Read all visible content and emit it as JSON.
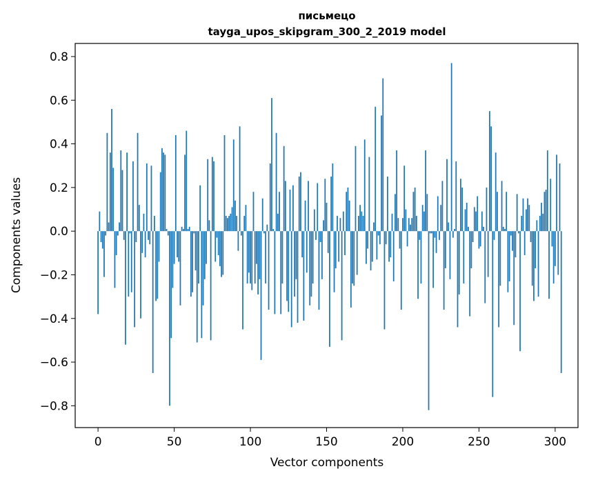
{
  "chart_data": {
    "type": "bar",
    "title": "письмецо",
    "subtitle": "tayga_upos_skipgram_300_2_2019 model",
    "xlabel": "Vector components",
    "ylabel": "Components values",
    "xlim": [
      -15,
      315
    ],
    "ylim": [
      -0.9,
      0.86
    ],
    "x_ticks": [
      0,
      50,
      100,
      150,
      200,
      250,
      300
    ],
    "x_tick_labels": [
      "0",
      "50",
      "100",
      "150",
      "200",
      "250",
      "300"
    ],
    "y_ticks": [
      -0.8,
      -0.6,
      -0.4,
      -0.2,
      0.0,
      0.2,
      0.4,
      0.6,
      0.8
    ],
    "y_tick_labels": [
      "−0.8",
      "−0.6",
      "−0.4",
      "−0.2",
      "0.0",
      "0.2",
      "0.4",
      "0.6",
      "0.8"
    ],
    "grid": false,
    "bar_color": "#1f77b4",
    "values": [
      -0.38,
      0.09,
      -0.05,
      -0.08,
      -0.21,
      -0.02,
      0.45,
      0.04,
      0.36,
      0.56,
      0.29,
      -0.26,
      -0.11,
      -0.02,
      0.04,
      0.37,
      0.28,
      -0.04,
      -0.52,
      0.36,
      -0.3,
      -0.01,
      -0.28,
      0.32,
      -0.44,
      -0.05,
      0.45,
      0.12,
      -0.4,
      -0.1,
      0.08,
      -0.12,
      0.31,
      -0.04,
      -0.06,
      0.3,
      -0.65,
      0.07,
      -0.32,
      -0.31,
      -0.14,
      0.27,
      0.38,
      0.36,
      0.35,
      0.01,
      -0.02,
      -0.8,
      -0.49,
      -0.26,
      -0.15,
      0.44,
      -0.12,
      -0.14,
      -0.34,
      0.02,
      0.01,
      0.35,
      0.46,
      0.01,
      0.02,
      -0.3,
      -0.28,
      -0.01,
      -0.18,
      -0.51,
      -0.24,
      0.21,
      -0.49,
      -0.34,
      -0.22,
      -0.15,
      0.33,
      0.05,
      -0.5,
      0.34,
      0.32,
      -0.14,
      -0.03,
      -0.11,
      -0.16,
      -0.21,
      -0.2,
      0.44,
      0.07,
      0.06,
      0.07,
      0.08,
      0.11,
      0.42,
      0.14,
      0.07,
      -0.09,
      0.48,
      -0.02,
      -0.45,
      0.07,
      0.12,
      -0.24,
      -0.19,
      -0.24,
      -0.27,
      0.18,
      -0.24,
      -0.15,
      -0.29,
      -0.22,
      -0.59,
      0.15,
      -0.01,
      -0.24,
      0.03,
      -0.36,
      0.31,
      0.61,
      0.01,
      -0.38,
      0.45,
      0.08,
      0.18,
      -0.38,
      -0.24,
      0.39,
      0.23,
      -0.32,
      -0.37,
      0.19,
      -0.44,
      0.21,
      -0.3,
      -0.22,
      -0.42,
      0.25,
      0.27,
      -0.12,
      -0.41,
      0.14,
      -0.19,
      0.23,
      -0.34,
      -0.3,
      -0.24,
      0.1,
      -0.04,
      0.22,
      -0.36,
      -0.05,
      -0.22,
      0.05,
      0.24,
      0.13,
      -0.1,
      -0.53,
      0.25,
      0.31,
      -0.28,
      -0.17,
      0.07,
      -0.14,
      0.06,
      -0.5,
      0.09,
      -0.11,
      0.18,
      0.2,
      0.14,
      -0.35,
      -0.24,
      -0.25,
      0.39,
      -0.2,
      0.07,
      0.12,
      0.09,
      0.07,
      0.42,
      -0.15,
      -0.08,
      0.34,
      -0.18,
      -0.14,
      0.04,
      0.57,
      -0.13,
      -0.02,
      -0.06,
      0.53,
      0.7,
      -0.45,
      -0.06,
      0.25,
      -0.14,
      -0.12,
      0.08,
      -0.23,
      0.17,
      0.37,
      0.06,
      -0.08,
      -0.36,
      0.06,
      0.3,
      0.1,
      -0.07,
      0.06,
      0.03,
      0.06,
      0.18,
      0.2,
      0.07,
      -0.31,
      -0.04,
      -0.24,
      0.12,
      0.09,
      0.37,
      0.17,
      -0.82,
      -0.01,
      -0.01,
      -0.26,
      -0.03,
      -0.1,
      0.16,
      -0.04,
      0.12,
      0.23,
      -0.36,
      -0.17,
      0.33,
      0.04,
      -0.22,
      0.77,
      -0.03,
      0.01,
      0.32,
      -0.44,
      -0.29,
      0.24,
      0.2,
      -0.24,
      0.1,
      0.13,
      0.02,
      -0.39,
      -0.17,
      -0.05,
      0.11,
      0.09,
      0.16,
      -0.08,
      -0.07,
      0.09,
      0.02,
      -0.33,
      0.2,
      -0.21,
      0.55,
      0.48,
      -0.76,
      -0.04,
      0.36,
      0.18,
      -0.44,
      -0.25,
      0.23,
      0.02,
      0.01,
      0.18,
      -0.28,
      -0.23,
      -0.02,
      -0.09,
      -0.43,
      -0.12,
      0.17,
      -0.01,
      -0.55,
      0.07,
      0.15,
      -0.11,
      0.1,
      0.15,
      0.12,
      -0.05,
      -0.25,
      -0.32,
      -0.17,
      0.05,
      -0.3,
      0.07,
      0.13,
      0.08,
      0.18,
      0.19,
      0.37,
      -0.31,
      0.24,
      -0.07,
      -0.24,
      -0.16,
      0.35,
      -0.2,
      0.31,
      -0.65
    ]
  }
}
